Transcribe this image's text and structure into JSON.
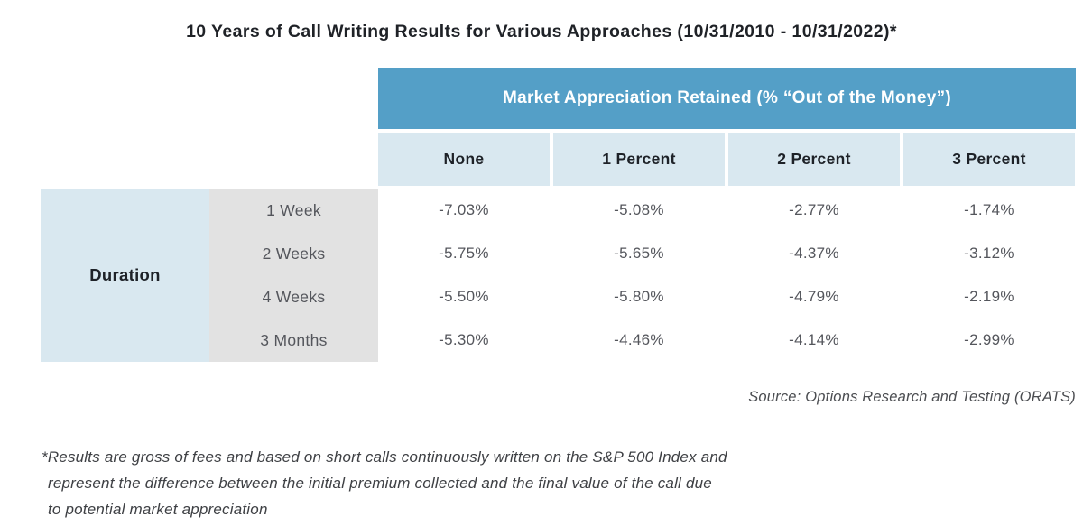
{
  "title": "10 Years of Call Writing Results for Various Approaches (10/31/2010 - 10/31/2022)*",
  "table": {
    "group_header": "Market Appreciation Retained (% “Out of the Money”)",
    "row_group_label": "Duration",
    "column_headers": [
      "None",
      "1 Percent",
      "2 Percent",
      "3 Percent"
    ],
    "rows": [
      {
        "label": "1 Week",
        "values": [
          "-7.03%",
          "-5.08%",
          "-2.77%",
          "-1.74%"
        ]
      },
      {
        "label": "2 Weeks",
        "values": [
          "-5.75%",
          "-5.65%",
          "-4.37%",
          "-3.12%"
        ]
      },
      {
        "label": "4 Weeks",
        "values": [
          "-5.50%",
          "-5.80%",
          "-4.79%",
          "-2.19%"
        ]
      },
      {
        "label": "3 Months",
        "values": [
          "-5.30%",
          "-4.46%",
          "-4.14%",
          "-2.99%"
        ]
      }
    ]
  },
  "source": "Source: Options Research and Testing (ORATS)",
  "footnote": {
    "line1": "*Results are gross of fees and based on short calls continuously written on the S&P 500 Index and",
    "line2": "represent the difference between the initial premium collected and the final value of the call due",
    "line3": "to potential market appreciation"
  },
  "colors": {
    "header_blue": "#549fc7",
    "light_blue": "#d9e8f0",
    "label_gray": "#e2e2e2",
    "title_text": "#1f2227",
    "value_text": "#54565c"
  },
  "chart_data": {
    "type": "table",
    "title": "10 Years of Call Writing Results for Various Approaches (10/31/2010 - 10/31/2022)*",
    "column_group": "Market Appreciation Retained (% “Out of the Money”)",
    "columns": [
      "None",
      "1 Percent",
      "2 Percent",
      "3 Percent"
    ],
    "row_group": "Duration",
    "row_labels": [
      "1 Week",
      "2 Weeks",
      "4 Weeks",
      "3 Months"
    ],
    "values_pct": [
      [
        -7.03,
        -5.08,
        -2.77,
        -1.74
      ],
      [
        -5.75,
        -5.65,
        -4.37,
        -3.12
      ],
      [
        -5.5,
        -5.8,
        -4.79,
        -2.19
      ],
      [
        -5.3,
        -4.46,
        -4.14,
        -2.99
      ]
    ],
    "source": "Source: Options Research and Testing (ORATS)",
    "footnote": "*Results are gross of fees and based on short calls continuously written on the S&P 500 Index and represent the difference between the initial premium collected and the final value of the call due to potential market appreciation"
  }
}
